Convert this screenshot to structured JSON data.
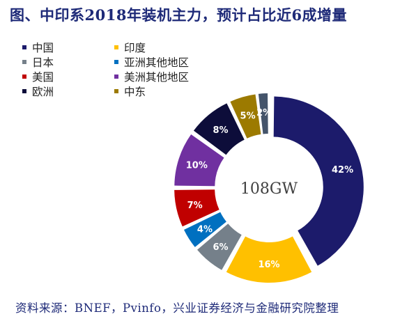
{
  "title": "图、中印系2018年装机主力，预计占比近6成增量",
  "source": "资料来源：BNEF，Pvinfo，兴业证券经济与金融研究院整理",
  "chart_data": {
    "type": "pie",
    "donut": true,
    "center_label": "108GW",
    "legend_placement": "top-left",
    "series": [
      {
        "name": "中国",
        "value": 42,
        "label": "42%",
        "color": "#1c1b6b"
      },
      {
        "name": "印度",
        "value": 16,
        "label": "16%",
        "color": "#ffc000"
      },
      {
        "name": "日本",
        "value": 6,
        "label": "6%",
        "color": "#75808a"
      },
      {
        "name": "亚洲其他地区",
        "value": 4,
        "label": "4%",
        "color": "#0070c0"
      },
      {
        "name": "美国",
        "value": 7,
        "label": "7%",
        "color": "#c00000"
      },
      {
        "name": "美洲其他地区",
        "value": 10,
        "label": "10%",
        "color": "#7030a0"
      },
      {
        "name": "欧洲",
        "value": 8,
        "label": "8%",
        "color": "#0d0d3a"
      },
      {
        "name": "中东",
        "value": 5,
        "label": "5%",
        "color": "#9c7a00"
      },
      {
        "name": "",
        "value": 2,
        "label": "2%",
        "color": "#44546a"
      }
    ]
  }
}
